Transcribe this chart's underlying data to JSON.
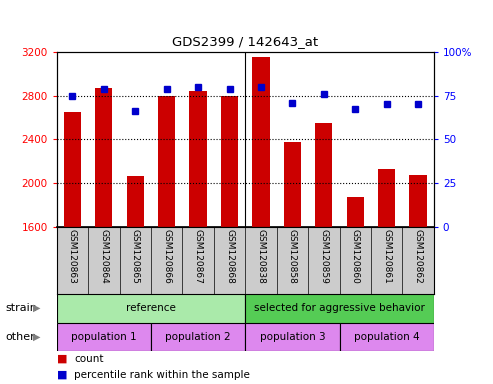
{
  "title": "GDS2399 / 142643_at",
  "samples": [
    "GSM120863",
    "GSM120864",
    "GSM120865",
    "GSM120866",
    "GSM120867",
    "GSM120868",
    "GSM120838",
    "GSM120858",
    "GSM120859",
    "GSM120860",
    "GSM120861",
    "GSM120862"
  ],
  "counts": [
    2650,
    2870,
    2060,
    2800,
    2840,
    2800,
    3150,
    2370,
    2550,
    1870,
    2130,
    2070
  ],
  "percentile_ranks": [
    75,
    79,
    66,
    79,
    80,
    79,
    80,
    71,
    76,
    67,
    70,
    70
  ],
  "ylim_left": [
    1600,
    3200
  ],
  "ylim_right": [
    0,
    100
  ],
  "yticks_left": [
    1600,
    2000,
    2400,
    2800,
    3200
  ],
  "yticks_right": [
    0,
    25,
    50,
    75,
    100
  ],
  "bar_color": "#cc0000",
  "dot_color": "#0000cc",
  "strain_groups": [
    {
      "label": "reference",
      "start": 0,
      "end": 6,
      "color": "#aaeaaa"
    },
    {
      "label": "selected for aggressive behavior",
      "start": 6,
      "end": 12,
      "color": "#55cc55"
    }
  ],
  "other_groups": [
    {
      "label": "population 1",
      "start": 0,
      "end": 3,
      "color": "#dd88ee"
    },
    {
      "label": "population 2",
      "start": 3,
      "end": 6,
      "color": "#dd88ee"
    },
    {
      "label": "population 3",
      "start": 6,
      "end": 9,
      "color": "#dd88ee"
    },
    {
      "label": "population 4",
      "start": 9,
      "end": 12,
      "color": "#dd88ee"
    }
  ],
  "legend_count_label": "count",
  "legend_pct_label": "percentile rank within the sample",
  "strain_label": "strain",
  "other_label": "other",
  "tick_area_color": "#cccccc",
  "separator_col": 6,
  "n_samples": 12
}
